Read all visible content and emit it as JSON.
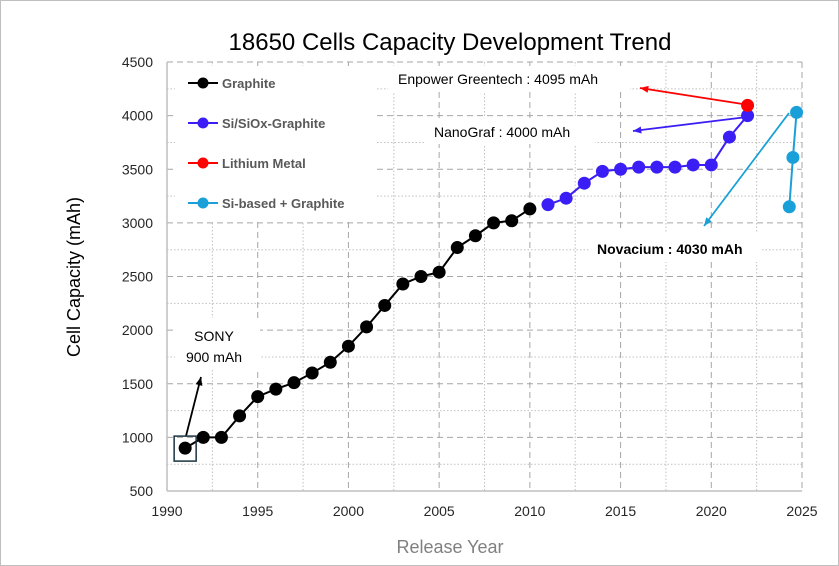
{
  "chart_data": {
    "type": "line",
    "title": "18650 Cells Capacity Development Trend",
    "xlabel": "Release Year",
    "ylabel": "Cell Capacity (mAh)",
    "xlim": [
      1990,
      2025
    ],
    "ylim": [
      500,
      4500
    ],
    "xticks": [
      1990,
      1995,
      2000,
      2005,
      2010,
      2015,
      2020,
      2025
    ],
    "yticks": [
      500,
      1000,
      1500,
      2000,
      2500,
      3000,
      3500,
      4000,
      4500
    ],
    "grid": true,
    "legend_position": "top-left",
    "series": [
      {
        "name": "Graphite",
        "color": "#000000",
        "x": [
          1991,
          1992,
          1993,
          1994,
          1995,
          1996,
          1997,
          1998,
          1999,
          2000,
          2001,
          2002,
          2003,
          2004,
          2005,
          2006,
          2007,
          2008,
          2009,
          2010
        ],
        "y": [
          900,
          1000,
          1000,
          1200,
          1380,
          1450,
          1510,
          1600,
          1700,
          1850,
          2030,
          2230,
          2430,
          2500,
          2540,
          2770,
          2880,
          3000,
          3020,
          3130
        ]
      },
      {
        "name": "Si/SiOx-Graphite",
        "color": "#3a1ef5",
        "x": [
          2011,
          2012,
          2013,
          2014,
          2015,
          2016,
          2017,
          2018,
          2019,
          2020,
          2021,
          2022
        ],
        "y": [
          3170,
          3230,
          3370,
          3480,
          3500,
          3520,
          3520,
          3520,
          3540,
          3540,
          3800,
          4000
        ]
      },
      {
        "name": "Lithium Metal",
        "color": "#ff0000",
        "x": [
          2022
        ],
        "y": [
          4095
        ]
      },
      {
        "name": "Si-based + Graphite",
        "color": "#1aa0d8",
        "x": [
          2024.7,
          2024.5,
          2024.3
        ],
        "y": [
          4030,
          3610,
          3150
        ]
      }
    ],
    "annotations": [
      {
        "text_lines": [
          "SONY",
          "900 mAh"
        ],
        "color": "#000000"
      },
      {
        "text": "Enpower Greentech : 4095 mAh",
        "color": "#ff0000"
      },
      {
        "text": "NanoGraf : 4000 mAh",
        "color": "#3a1ef5"
      },
      {
        "text": "Novacium : 4030 mAh",
        "color": "#1aa0d8"
      }
    ]
  }
}
